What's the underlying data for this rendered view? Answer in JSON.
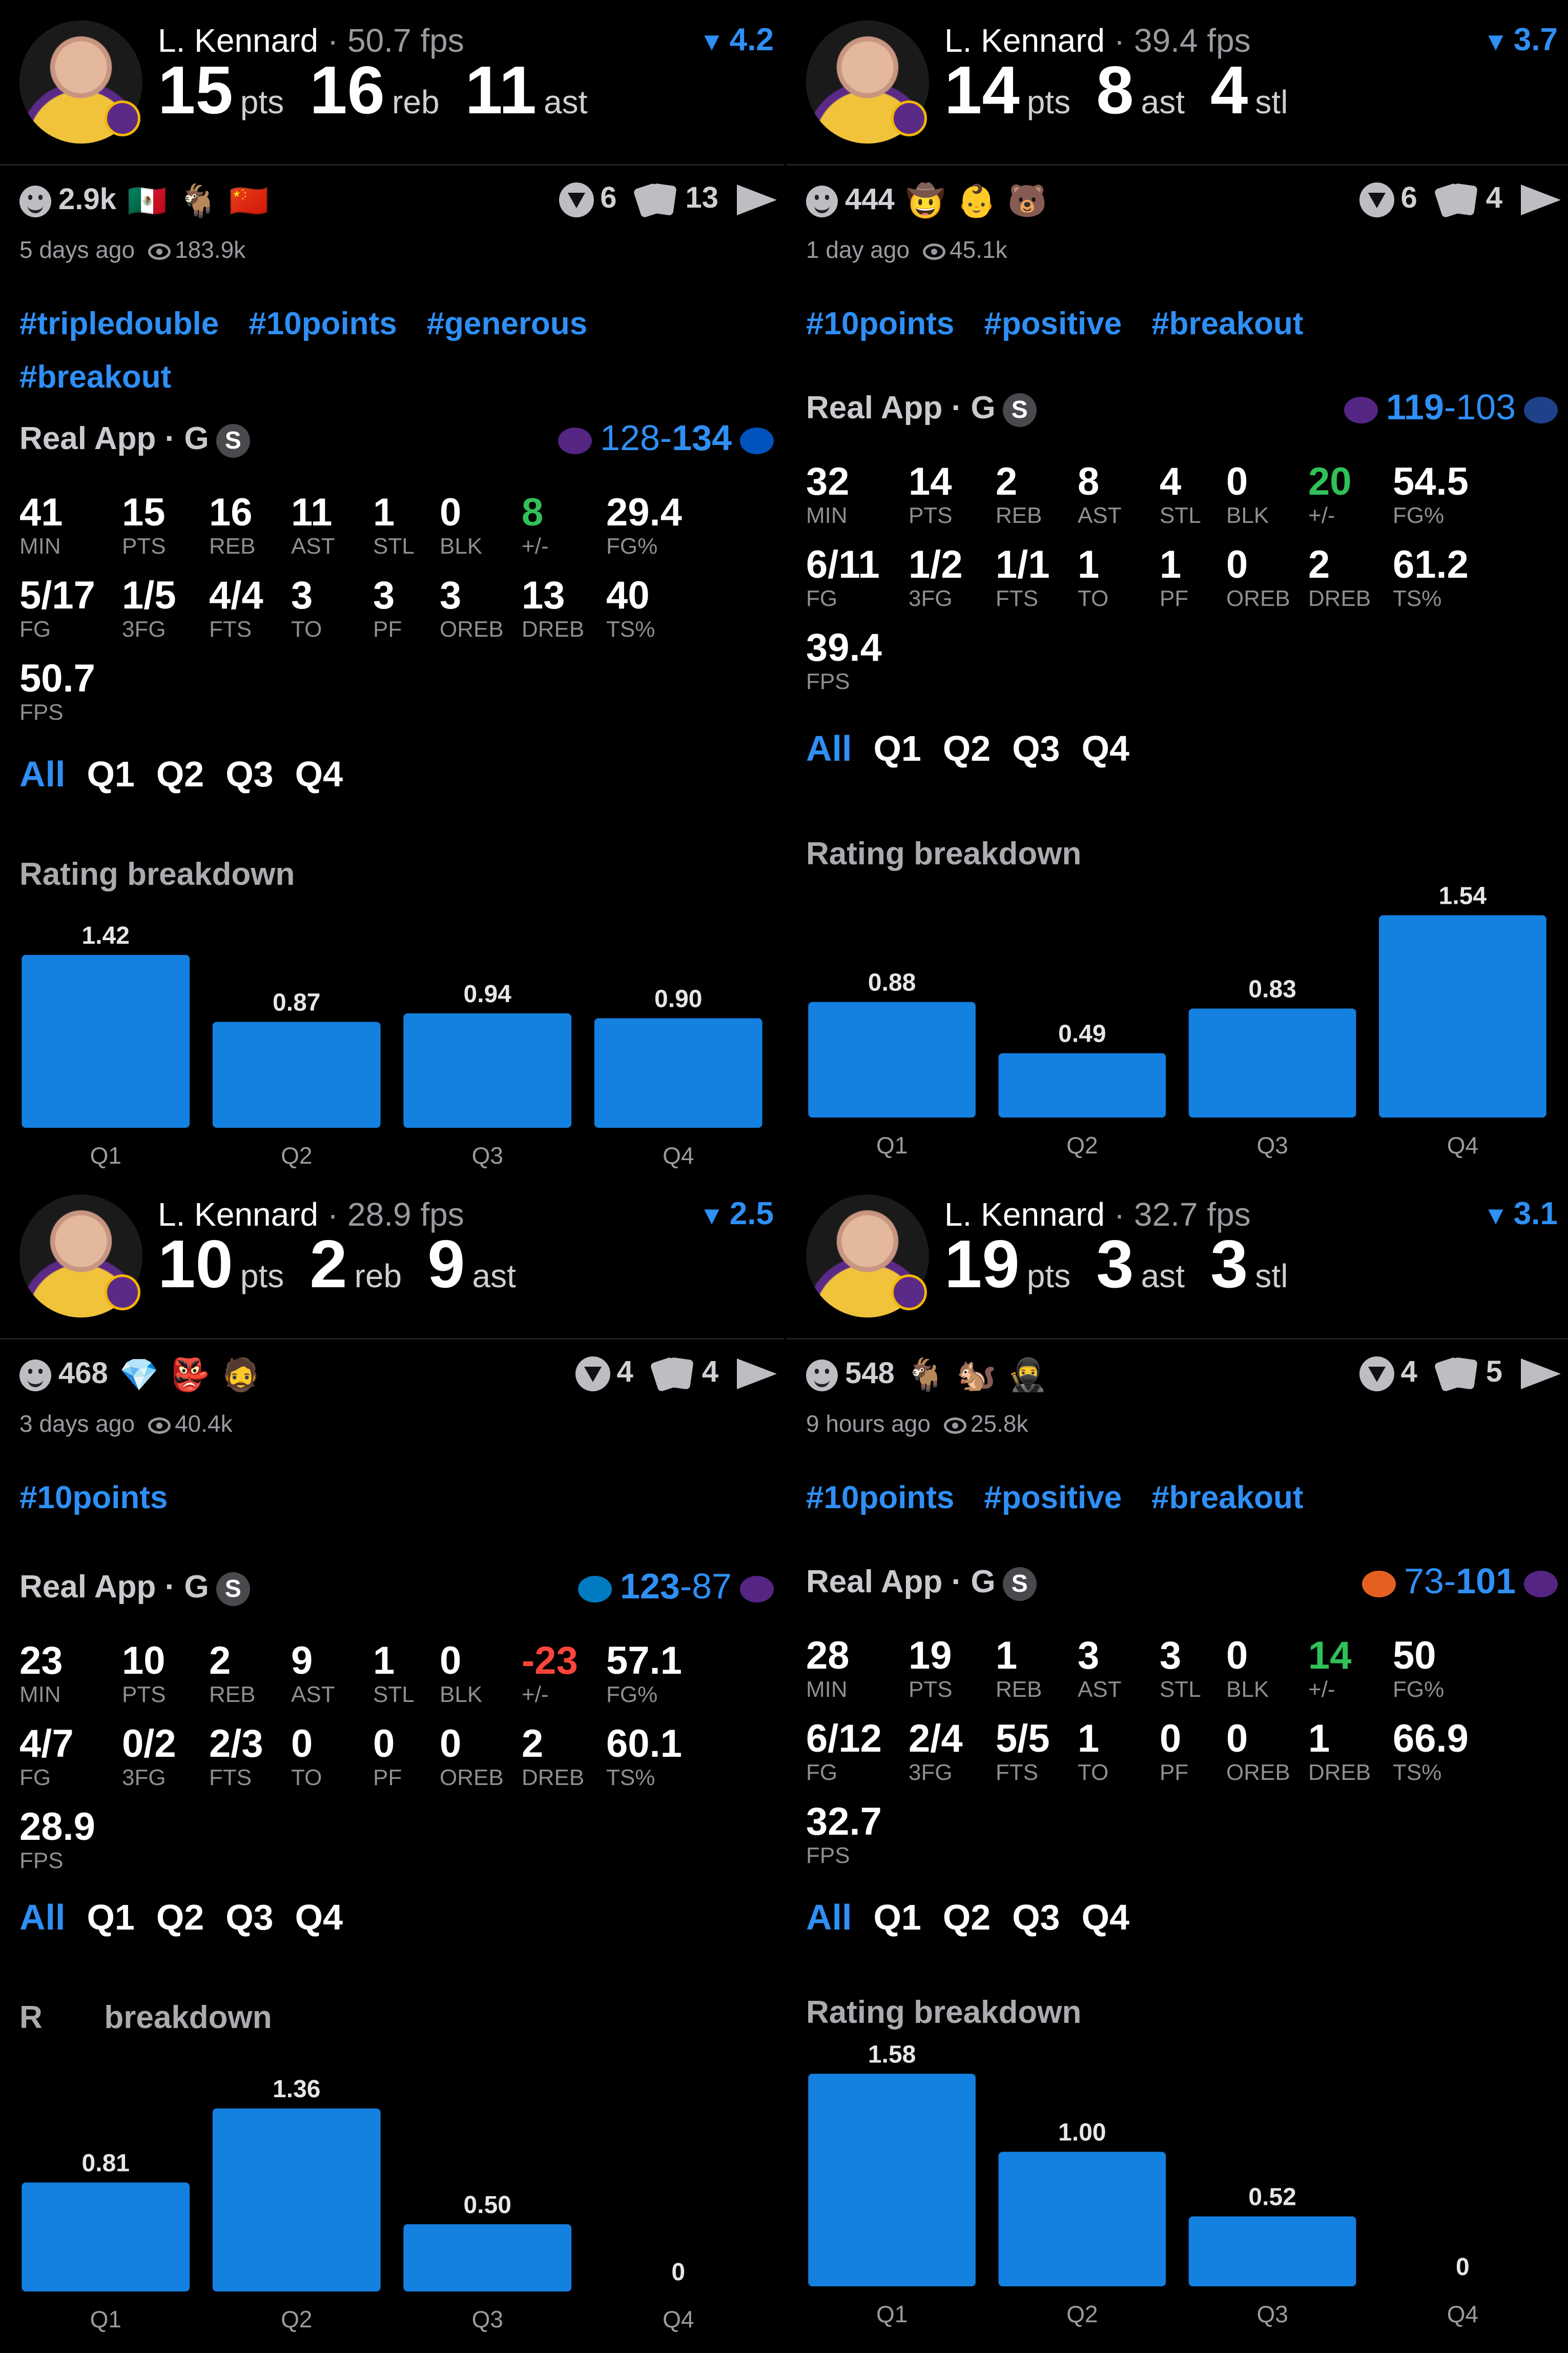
{
  "panels": [
    {
      "player": "L. Kennard",
      "fps": "50.7 fps",
      "rating": "4.2",
      "headline": [
        {
          "n": "15",
          "u": "pts"
        },
        {
          "n": "16",
          "u": "reb"
        },
        {
          "n": "11",
          "u": "ast"
        }
      ],
      "reactions": "2.9k",
      "emojis": [
        "🇲🇽",
        "🐐",
        "🇨🇳"
      ],
      "comments": "6",
      "cards": "13",
      "time": "5 days ago",
      "views": "183.9k",
      "tags": [
        "#tripledouble",
        "#10points",
        "#generous",
        "#breakout"
      ],
      "game": "Real App",
      "game_type": "G",
      "badge": "S",
      "score_a": "128",
      "score_b": "134",
      "winner": "b",
      "team_a_color": "#552583",
      "team_b_color": "#0053bc",
      "stats_row1": [
        {
          "v": "41",
          "l": "MIN"
        },
        {
          "v": "15",
          "l": "PTS"
        },
        {
          "v": "16",
          "l": "REB"
        },
        {
          "v": "11",
          "l": "AST"
        },
        {
          "v": "1",
          "l": "STL"
        },
        {
          "v": "0",
          "l": "BLK"
        },
        {
          "v": "8",
          "l": "+/-",
          "c": "pos"
        },
        {
          "v": "29.4",
          "l": "FG%"
        }
      ],
      "stats_row2": [
        {
          "v": "5/17",
          "l": "FG"
        },
        {
          "v": "1/5",
          "l": "3FG"
        },
        {
          "v": "4/4",
          "l": "FTS"
        },
        {
          "v": "3",
          "l": "TO"
        },
        {
          "v": "3",
          "l": "PF"
        },
        {
          "v": "3",
          "l": "OREB"
        },
        {
          "v": "13",
          "l": "DREB"
        },
        {
          "v": "40",
          "l": "TS%"
        }
      ],
      "stats_row3": [
        {
          "v": "50.7",
          "l": "FPS"
        }
      ],
      "tabs": [
        "All",
        "Q1",
        "Q2",
        "Q3",
        "Q4"
      ],
      "rb_title": "Rating breakdown",
      "chart_data": {
        "type": "bar",
        "categories": [
          "Q1",
          "Q2",
          "Q3",
          "Q4"
        ],
        "values": [
          1.42,
          0.87,
          0.94,
          0.9
        ],
        "labels": [
          "1.42",
          "0.87",
          "0.94",
          "0.90"
        ],
        "ylim": [
          0,
          1.6
        ]
      }
    },
    {
      "player": "L. Kennard",
      "fps": "39.4 fps",
      "rating": "3.7",
      "headline": [
        {
          "n": "14",
          "u": "pts"
        },
        {
          "n": "8",
          "u": "ast"
        },
        {
          "n": "4",
          "u": "stl"
        }
      ],
      "reactions": "444",
      "emojis": [
        "🤠",
        "👶",
        "🐻"
      ],
      "comments": "6",
      "cards": "4",
      "time": "1 day ago",
      "views": "45.1k",
      "tags": [
        "#10points",
        "#positive",
        "#breakout"
      ],
      "game": "Real App",
      "game_type": "G",
      "badge": "S",
      "score_a": "119",
      "score_b": "103",
      "winner": "a",
      "team_a_color": "#552583",
      "team_b_color": "#1d428a",
      "stats_row1": [
        {
          "v": "32",
          "l": "MIN"
        },
        {
          "v": "14",
          "l": "PTS"
        },
        {
          "v": "2",
          "l": "REB"
        },
        {
          "v": "8",
          "l": "AST"
        },
        {
          "v": "4",
          "l": "STL"
        },
        {
          "v": "0",
          "l": "BLK"
        },
        {
          "v": "20",
          "l": "+/-",
          "c": "pos"
        },
        {
          "v": "54.5",
          "l": "FG%"
        }
      ],
      "stats_row2": [
        {
          "v": "6/11",
          "l": "FG"
        },
        {
          "v": "1/2",
          "l": "3FG"
        },
        {
          "v": "1/1",
          "l": "FTS"
        },
        {
          "v": "1",
          "l": "TO"
        },
        {
          "v": "1",
          "l": "PF"
        },
        {
          "v": "0",
          "l": "OREB"
        },
        {
          "v": "2",
          "l": "DREB"
        },
        {
          "v": "61.2",
          "l": "TS%"
        }
      ],
      "stats_row3": [
        {
          "v": "39.4",
          "l": "FPS"
        }
      ],
      "tabs": [
        "All",
        "Q1",
        "Q2",
        "Q3",
        "Q4"
      ],
      "rb_title": "Rating breakdown",
      "chart_data": {
        "type": "bar",
        "categories": [
          "Q1",
          "Q2",
          "Q3",
          "Q4"
        ],
        "values": [
          0.88,
          0.49,
          0.83,
          1.54
        ],
        "labels": [
          "0.88",
          "0.49",
          "0.83",
          "1.54"
        ],
        "ylim": [
          0,
          1.6
        ]
      }
    },
    {
      "player": "L. Kennard",
      "fps": "28.9 fps",
      "rating": "2.5",
      "headline": [
        {
          "n": "10",
          "u": "pts"
        },
        {
          "n": "2",
          "u": "reb"
        },
        {
          "n": "9",
          "u": "ast"
        }
      ],
      "reactions": "468",
      "emojis": [
        "💎",
        "👺",
        "🧔"
      ],
      "comments": "4",
      "cards": "4",
      "time": "3 days ago",
      "views": "40.4k",
      "tags": [
        "#10points"
      ],
      "game": "Real App",
      "game_type": "G",
      "badge": "S",
      "score_a": "123",
      "score_b": "87",
      "winner": "a",
      "team_a_color": "#007ac1",
      "team_b_color": "#552583",
      "stats_row1": [
        {
          "v": "23",
          "l": "MIN"
        },
        {
          "v": "10",
          "l": "PTS"
        },
        {
          "v": "2",
          "l": "REB"
        },
        {
          "v": "9",
          "l": "AST"
        },
        {
          "v": "1",
          "l": "STL"
        },
        {
          "v": "0",
          "l": "BLK"
        },
        {
          "v": "-23",
          "l": "+/-",
          "c": "neg"
        },
        {
          "v": "57.1",
          "l": "FG%"
        }
      ],
      "stats_row2": [
        {
          "v": "4/7",
          "l": "FG"
        },
        {
          "v": "0/2",
          "l": "3FG"
        },
        {
          "v": "2/3",
          "l": "FTS"
        },
        {
          "v": "0",
          "l": "TO"
        },
        {
          "v": "0",
          "l": "PF"
        },
        {
          "v": "0",
          "l": "OREB"
        },
        {
          "v": "2",
          "l": "DREB"
        },
        {
          "v": "60.1",
          "l": "TS%"
        }
      ],
      "stats_row3": [
        {
          "v": "28.9",
          "l": "FPS"
        }
      ],
      "tabs": [
        "All",
        "Q1",
        "Q2",
        "Q3",
        "Q4"
      ],
      "rb_title": "R       breakdown",
      "chart_data": {
        "type": "bar",
        "categories": [
          "Q1",
          "Q2",
          "Q3",
          "Q4"
        ],
        "values": [
          0.81,
          1.36,
          0.5,
          0
        ],
        "labels": [
          "0.81",
          "1.36",
          "0.50",
          "0"
        ],
        "ylim": [
          0,
          1.6
        ]
      }
    },
    {
      "player": "L. Kennard",
      "fps": "32.7 fps",
      "rating": "3.1",
      "headline": [
        {
          "n": "19",
          "u": "pts"
        },
        {
          "n": "3",
          "u": "ast"
        },
        {
          "n": "3",
          "u": "stl"
        }
      ],
      "reactions": "548",
      "emojis": [
        "🐐",
        "🐿️",
        "🥷"
      ],
      "comments": "4",
      "cards": "5",
      "time": "9 hours ago",
      "views": "25.8k",
      "tags": [
        "#10points",
        "#positive",
        "#breakout"
      ],
      "game": "Real App",
      "game_type": "G",
      "badge": "S",
      "score_a": "73",
      "score_b": "101",
      "winner": "b",
      "team_a_color": "#e56020",
      "team_b_color": "#552583",
      "stats_row1": [
        {
          "v": "28",
          "l": "MIN"
        },
        {
          "v": "19",
          "l": "PTS"
        },
        {
          "v": "1",
          "l": "REB"
        },
        {
          "v": "3",
          "l": "AST"
        },
        {
          "v": "3",
          "l": "STL"
        },
        {
          "v": "0",
          "l": "BLK"
        },
        {
          "v": "14",
          "l": "+/-",
          "c": "pos"
        },
        {
          "v": "50",
          "l": "FG%"
        }
      ],
      "stats_row2": [
        {
          "v": "6/12",
          "l": "FG"
        },
        {
          "v": "2/4",
          "l": "3FG"
        },
        {
          "v": "5/5",
          "l": "FTS"
        },
        {
          "v": "1",
          "l": "TO"
        },
        {
          "v": "0",
          "l": "PF"
        },
        {
          "v": "0",
          "l": "OREB"
        },
        {
          "v": "1",
          "l": "DREB"
        },
        {
          "v": "66.9",
          "l": "TS%"
        }
      ],
      "stats_row3": [
        {
          "v": "32.7",
          "l": "FPS"
        }
      ],
      "tabs": [
        "All",
        "Q1",
        "Q2",
        "Q3",
        "Q4"
      ],
      "rb_title": "Rating breakdown",
      "chart_data": {
        "type": "bar",
        "categories": [
          "Q1",
          "Q2",
          "Q3",
          "Q4"
        ],
        "values": [
          1.58,
          1.0,
          0.52,
          0
        ],
        "labels": [
          "1.58",
          "1.00",
          "0.52",
          "0"
        ],
        "ylim": [
          0,
          1.6
        ]
      }
    }
  ],
  "colors": {
    "accent": "#2f8ff5",
    "bar": "#1480e0",
    "positive": "#30c158",
    "negative": "#ff453a"
  },
  "icons": {
    "reactions": "smiley-icon",
    "comments": "shield-icon",
    "cards": "cards-icon",
    "share": "send-icon",
    "views": "eye-icon",
    "rating": "chevron-down-icon"
  }
}
